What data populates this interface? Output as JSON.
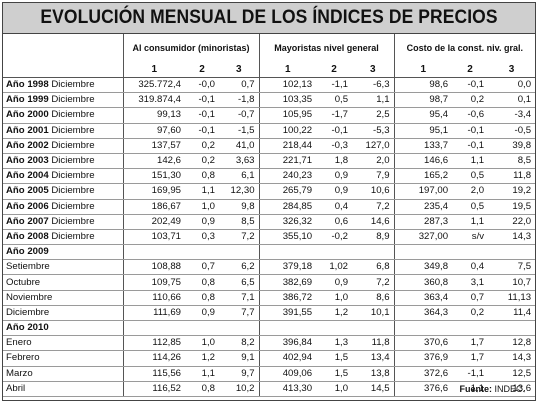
{
  "title": "EVOLUCIÓN MENSUAL DE LOS ÍNDICES DE PRECIOS",
  "groups": [
    "Al consumidor (minoristas)",
    "Mayoristas nivel general",
    "Costo de la const. niv. gral."
  ],
  "subcols": [
    "1",
    "2",
    "3"
  ],
  "rows": [
    {
      "type": "data",
      "year": "Año 1998",
      "month": "Diciembre",
      "v": [
        "325.772,4",
        "-0,0",
        "0,7",
        "102,13",
        "-1,1",
        "-6,3",
        "98,6",
        "-0,1",
        "0,0"
      ]
    },
    {
      "type": "data",
      "year": "Año 1999",
      "month": "Diciembre",
      "v": [
        "319.874,4",
        "-0,1",
        "-1,8",
        "103,35",
        "0,5",
        "1,1",
        "98,7",
        "0,2",
        "0,1"
      ]
    },
    {
      "type": "data",
      "year": "Año 2000",
      "month": "Diciembre",
      "v": [
        "99,13",
        "-0,1",
        "-0,7",
        "105,95",
        "-1,7",
        "2,5",
        "95,4",
        "-0,6",
        "-3,4"
      ]
    },
    {
      "type": "data",
      "year": "Año 2001",
      "month": "Diciembre",
      "v": [
        "97,60",
        "-0,1",
        "-1,5",
        "100,22",
        "-0,1",
        "-5,3",
        "95,1",
        "-0,1",
        "-0,5"
      ]
    },
    {
      "type": "data",
      "year": "Año 2002",
      "month": "Diciembre",
      "v": [
        "137,57",
        "0,2",
        "41,0",
        "218,44",
        "-0,3",
        "127,0",
        "133,7",
        "-0,1",
        "39,8"
      ]
    },
    {
      "type": "data",
      "year": "Año 2003",
      "month": "Diciembre",
      "v": [
        "142,6",
        "0,2",
        "3,63",
        "221,71",
        "1,8",
        "2,0",
        "146,6",
        "1,1",
        "8,5"
      ]
    },
    {
      "type": "data",
      "year": "Año 2004",
      "month": "Diciembre",
      "v": [
        "151,30",
        "0,8",
        "6,1",
        "240,23",
        "0,9",
        "7,9",
        "165,2",
        "0,5",
        "11,8"
      ]
    },
    {
      "type": "data",
      "year": "Año 2005",
      "month": "Diciembre",
      "v": [
        "169,95",
        "1,1",
        "12,30",
        "265,79",
        "0,9",
        "10,6",
        "197,00",
        "2,0",
        "19,2"
      ]
    },
    {
      "type": "data",
      "year": "Año 2006",
      "month": "Diciembre",
      "v": [
        "186,67",
        "1,0",
        "9,8",
        "284,85",
        "0,4",
        "7,2",
        "235,4",
        "0,5",
        "19,5"
      ]
    },
    {
      "type": "data",
      "year": "Año 2007",
      "month": "Diciembre",
      "v": [
        "202,49",
        "0,9",
        "8,5",
        "326,32",
        "0,6",
        "14,6",
        "287,3",
        "1,1",
        "22,0"
      ]
    },
    {
      "type": "data",
      "year": "Año 2008",
      "month": "Diciembre",
      "v": [
        "103,71",
        "0,3",
        "7,2",
        "355,10",
        "-0,2",
        "8,9",
        "327,00",
        "s/v",
        "14,3"
      ]
    },
    {
      "type": "section",
      "year": "Año 2009"
    },
    {
      "type": "data",
      "year": "",
      "month": "Setiembre",
      "v": [
        "108,88",
        "0,7",
        "6,2",
        "379,18",
        "1,02",
        "6,8",
        "349,8",
        "0,4",
        "7,5"
      ]
    },
    {
      "type": "data",
      "year": "",
      "month": "Octubre",
      "v": [
        "109,75",
        "0,8",
        "6,5",
        "382,69",
        "0,9",
        "7,2",
        "360,8",
        "3,1",
        "10,7"
      ]
    },
    {
      "type": "data",
      "year": "",
      "month": "Noviembre",
      "v": [
        "110,66",
        "0,8",
        "7,1",
        "386,72",
        "1,0",
        "8,6",
        "363,4",
        "0,7",
        "11,13"
      ]
    },
    {
      "type": "data",
      "year": "",
      "month": "Diciembre",
      "v": [
        "111,69",
        "0,9",
        "7,7",
        "391,55",
        "1,2",
        "10,1",
        "364,3",
        "0,2",
        "11,4"
      ]
    },
    {
      "type": "section",
      "year": "Año 2010"
    },
    {
      "type": "data",
      "year": "",
      "month": "Enero",
      "v": [
        "112,85",
        "1,0",
        "8,2",
        "396,84",
        "1,3",
        "11,8",
        "370,6",
        "1,7",
        "12,8"
      ]
    },
    {
      "type": "data",
      "year": "",
      "month": "Febrero",
      "v": [
        "114,26",
        "1,2",
        "9,1",
        "402,94",
        "1,5",
        "13,4",
        "376,9",
        "1,7",
        "14,3"
      ]
    },
    {
      "type": "data",
      "year": "",
      "month": "Marzo",
      "v": [
        "115,56",
        "1,1",
        "9,7",
        "409,06",
        "1,5",
        "13,8",
        "372,6",
        "-1,1",
        "12,5"
      ]
    },
    {
      "type": "data",
      "year": "",
      "month": "Abril",
      "v": [
        "116,52",
        "0,8",
        "10,2",
        "413,30",
        "1,0",
        "14,5",
        "376,6",
        "1,1",
        "13,6"
      ]
    }
  ],
  "footer": {
    "label": "Fuente:",
    "source": "INDEC."
  }
}
